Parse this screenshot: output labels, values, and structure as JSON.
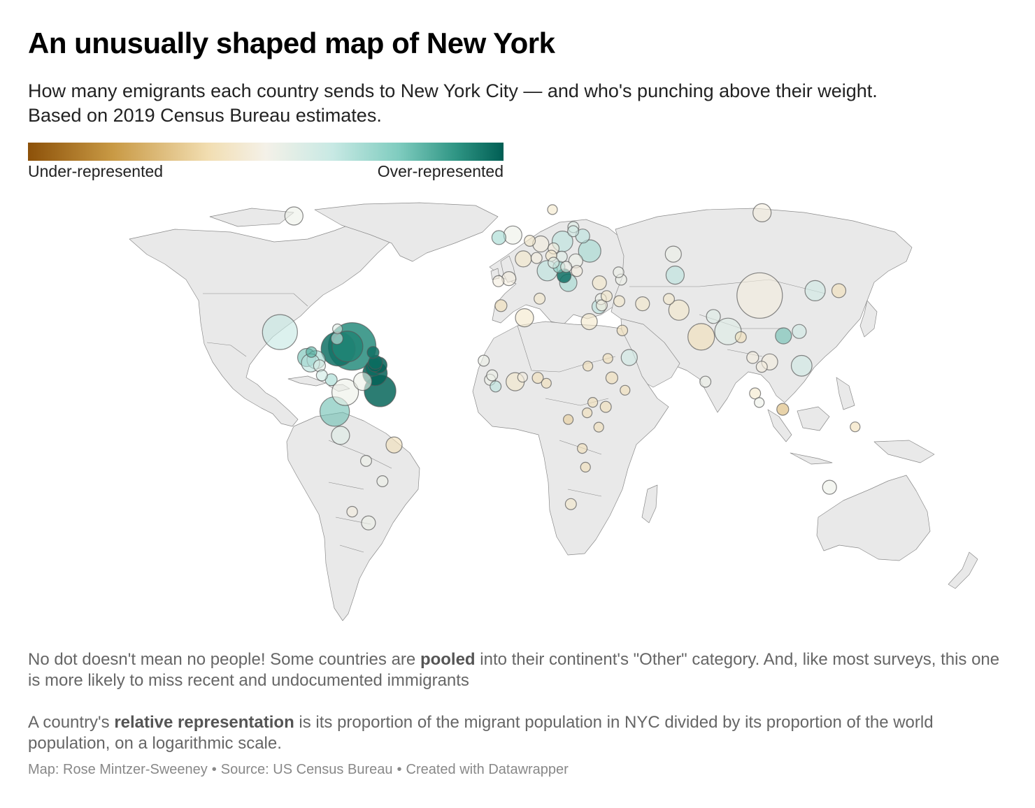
{
  "title": "An unusually shaped map of New York",
  "subtitle": {
    "line1": "How many emigrants each country sends to New York City — and who's punching above their weight.",
    "line2": "Based on 2019 Census Bureau estimates."
  },
  "legend": {
    "low_label": "Under-represented",
    "high_label": "Over-represented",
    "colors": [
      "#8c5109",
      "#c99a45",
      "#f2deb2",
      "#f4f1e8",
      "#c8e9e4",
      "#7fccbf",
      "#2f9584",
      "#005e54"
    ]
  },
  "notes": {
    "p1_a": "No dot doesn't mean no people! Some countries are ",
    "p1_b": "pooled",
    "p1_c": " into their continent's \"Other\" category. And, like most surveys, this one is more likely to miss recent and undocumented immigrants",
    "p2_a": "A country's ",
    "p2_b": "relative representation",
    "p2_c": " is its proportion of the migrant population in NYC divided by its proportion of the world population, on a logarithmic scale."
  },
  "footer": {
    "map_credit": "Map: Rose Mintzer-Sweeney",
    "source": "Source: US Census Bureau",
    "tool": "Created with Datawrapper",
    "separator": "•"
  },
  "colors": {
    "land": "#e9e9e9",
    "border": "#8a8a8a",
    "dot_stroke": "#555555"
  },
  "chart_data": {
    "type": "bubble-map",
    "size_meaning": "number of emigrants living in New York City",
    "color_meaning": "relative representation (log scale)",
    "points": [
      {
        "lon": -96,
        "lat": 60,
        "size": 0.3,
        "rep": 0.45
      },
      {
        "lon": -102,
        "lat": 23.5,
        "size": 0.7,
        "rep": 0.58
      },
      {
        "lon": -71.0,
        "lat": 19.0,
        "size": 1.0,
        "rep": 0.88
      },
      {
        "lon": -77.0,
        "lat": 18.2,
        "size": 0.68,
        "rep": 0.95
      },
      {
        "lon": -73.0,
        "lat": 19.0,
        "size": 0.6,
        "rep": 0.9
      },
      {
        "lon": -61.2,
        "lat": 10.5,
        "size": 0.45,
        "rep": 0.99
      },
      {
        "lon": -59.0,
        "lat": 5.0,
        "size": 0.62,
        "rep": 0.98
      },
      {
        "lon": -66.5,
        "lat": 8.0,
        "size": 0.3,
        "rep": 0.45
      },
      {
        "lon": -61.8,
        "lat": 12.2,
        "size": 0.25,
        "rep": 0.97
      },
      {
        "lon": -61.3,
        "lat": 13.2,
        "size": 0.2,
        "rep": 0.98
      },
      {
        "lon": -61.0,
        "lat": 14.0,
        "size": 0.2,
        "rep": 0.96
      },
      {
        "lon": -59.5,
        "lat": 13.1,
        "size": 0.25,
        "rep": 0.99
      },
      {
        "lon": -62.0,
        "lat": 17.1,
        "size": 0.15,
        "rep": 0.95
      },
      {
        "lon": -77.5,
        "lat": 21.5,
        "size": 0.15,
        "rep": 0.55
      },
      {
        "lon": -77.3,
        "lat": 24.5,
        "size": 0.1,
        "rep": 0.5
      },
      {
        "lon": -74.0,
        "lat": 4.6,
        "size": 0.5,
        "rep": 0.45
      },
      {
        "lon": -78.5,
        "lat": -1.5,
        "size": 0.57,
        "rep": 0.75
      },
      {
        "lon": -76.0,
        "lat": -9.0,
        "size": 0.3,
        "rep": 0.5
      },
      {
        "lon": -53.0,
        "lat": -12.0,
        "size": 0.25,
        "rep": 0.3
      },
      {
        "lon": -65.0,
        "lat": -17.0,
        "size": 0.13,
        "rep": 0.45
      },
      {
        "lon": -58.0,
        "lat": -23.4,
        "size": 0.13,
        "rep": 0.45
      },
      {
        "lon": -71.0,
        "lat": -33.0,
        "size": 0.12,
        "rep": 0.4
      },
      {
        "lon": -64.0,
        "lat": -36.5,
        "size": 0.2,
        "rep": 0.45
      },
      {
        "lon": -90.5,
        "lat": 15.5,
        "size": 0.3,
        "rep": 0.75
      },
      {
        "lon": -86.5,
        "lat": 14.8,
        "size": 0.3,
        "rep": 0.65
      },
      {
        "lon": -88.9,
        "lat": 13.8,
        "size": 0.3,
        "rep": 0.6
      },
      {
        "lon": -85.0,
        "lat": 12.9,
        "size": 0.15,
        "rep": 0.5
      },
      {
        "lon": -84.0,
        "lat": 9.9,
        "size": 0.13,
        "rep": 0.55
      },
      {
        "lon": -80.0,
        "lat": 8.5,
        "size": 0.15,
        "rep": 0.65
      },
      {
        "lon": -88.5,
        "lat": 17.2,
        "size": 0.12,
        "rep": 0.8
      },
      {
        "lon": -2.0,
        "lat": 54.0,
        "size": 0.3,
        "rep": 0.45
      },
      {
        "lon": -8.0,
        "lat": 53.2,
        "size": 0.2,
        "rep": 0.65
      },
      {
        "lon": 2.5,
        "lat": 46.5,
        "size": 0.25,
        "rep": 0.35
      },
      {
        "lon": -3.7,
        "lat": 40.3,
        "size": 0.2,
        "rep": 0.4
      },
      {
        "lon": -8.2,
        "lat": 39.5,
        "size": 0.13,
        "rep": 0.4
      },
      {
        "lon": 10.0,
        "lat": 51.2,
        "size": 0.25,
        "rep": 0.4
      },
      {
        "lon": 12.8,
        "lat": 42.8,
        "size": 0.35,
        "rep": 0.6
      },
      {
        "lon": 19.3,
        "lat": 52.0,
        "size": 0.36,
        "rep": 0.6
      },
      {
        "lon": 31.0,
        "lat": 49.0,
        "size": 0.4,
        "rep": 0.65
      },
      {
        "lon": 21.8,
        "lat": 39.0,
        "size": 0.28,
        "rep": 0.65
      },
      {
        "lon": 20.0,
        "lat": 41.2,
        "size": 0.2,
        "rep": 0.95
      },
      {
        "lon": 25.0,
        "lat": 45.9,
        "size": 0.2,
        "rep": 0.45
      },
      {
        "lon": 25.5,
        "lat": 42.7,
        "size": 0.13,
        "rep": 0.4
      },
      {
        "lon": 20.9,
        "lat": 44.0,
        "size": 0.13,
        "rep": 0.45
      },
      {
        "lon": 28.0,
        "lat": 53.7,
        "size": 0.2,
        "rep": 0.6
      },
      {
        "lon": 19.0,
        "lat": 47.2,
        "size": 0.13,
        "rep": 0.5
      },
      {
        "lon": 15.5,
        "lat": 49.8,
        "size": 0.13,
        "rep": 0.4
      },
      {
        "lon": 14.5,
        "lat": 47.5,
        "size": 0.13,
        "rep": 0.35
      },
      {
        "lon": 8.2,
        "lat": 46.8,
        "size": 0.13,
        "rep": 0.4
      },
      {
        "lon": 5.3,
        "lat": 52.2,
        "size": 0.13,
        "rep": 0.35
      },
      {
        "lon": 24.0,
        "lat": 56.5,
        "size": 0.13,
        "rep": 0.5
      },
      {
        "lon": 15.0,
        "lat": 62.0,
        "size": 0.1,
        "rep": 0.35
      },
      {
        "lon": 23.9,
        "lat": 55.2,
        "size": 0.13,
        "rep": 0.55
      },
      {
        "lon": 17.8,
        "lat": 44.0,
        "size": 0.15,
        "rep": 0.7
      },
      {
        "lon": 15.5,
        "lat": 45.3,
        "size": 0.13,
        "rep": 0.5
      },
      {
        "lon": 105.0,
        "lat": 61.0,
        "size": 0.3,
        "rep": 0.4
      },
      {
        "lon": 104.0,
        "lat": 35.0,
        "size": 0.95,
        "rep": 0.4
      },
      {
        "lon": 127.8,
        "lat": 36.5,
        "size": 0.35,
        "rep": 0.55
      },
      {
        "lon": 138.0,
        "lat": 36.5,
        "size": 0.2,
        "rep": 0.3
      },
      {
        "lon": 121.0,
        "lat": 23.7,
        "size": 0.2,
        "rep": 0.55
      },
      {
        "lon": 122.0,
        "lat": 12.9,
        "size": 0.36,
        "rep": 0.55
      },
      {
        "lon": 108.3,
        "lat": 14.1,
        "size": 0.25,
        "rep": 0.4
      },
      {
        "lon": 114.2,
        "lat": 22.3,
        "size": 0.25,
        "rep": 0.75
      },
      {
        "lon": 101.0,
        "lat": 15.5,
        "size": 0.15,
        "rep": 0.4
      },
      {
        "lon": 104.9,
        "lat": 12.6,
        "size": 0.13,
        "rep": 0.4
      },
      {
        "lon": 95.9,
        "lat": 21.9,
        "size": 0.13,
        "rep": 0.3
      },
      {
        "lon": 102.0,
        "lat": 4.2,
        "size": 0.13,
        "rep": 0.35
      },
      {
        "lon": 103.8,
        "lat": 1.35,
        "size": 0.1,
        "rep": 0.45
      },
      {
        "lon": 113.9,
        "lat": -0.8,
        "size": 0.15,
        "rep": 0.2
      },
      {
        "lon": 145.0,
        "lat": -6.3,
        "size": 0.1,
        "rep": 0.3
      },
      {
        "lon": 134.0,
        "lat": -25.3,
        "size": 0.2,
        "rep": 0.45
      },
      {
        "lon": 78.9,
        "lat": 22.0,
        "size": 0.5,
        "rep": 0.3
      },
      {
        "lon": 90.4,
        "lat": 23.7,
        "size": 0.5,
        "rep": 0.5
      },
      {
        "lon": 69.3,
        "lat": 30.4,
        "size": 0.35,
        "rep": 0.35
      },
      {
        "lon": 84.1,
        "lat": 28.4,
        "size": 0.2,
        "rep": 0.5
      },
      {
        "lon": 80.7,
        "lat": 7.9,
        "size": 0.13,
        "rep": 0.45
      },
      {
        "lon": 67.7,
        "lat": 41.4,
        "size": 0.3,
        "rep": 0.6
      },
      {
        "lon": 66.9,
        "lat": 48.0,
        "size": 0.25,
        "rep": 0.45
      },
      {
        "lon": 53.7,
        "lat": 32.4,
        "size": 0.2,
        "rep": 0.35
      },
      {
        "lon": 65.0,
        "lat": 33.9,
        "size": 0.13,
        "rep": 0.35
      },
      {
        "lon": 44.5,
        "lat": 40.0,
        "size": 0.13,
        "rep": 0.45
      },
      {
        "lon": 43.4,
        "lat": 42.3,
        "size": 0.12,
        "rep": 0.45
      },
      {
        "lon": 35.2,
        "lat": 39.0,
        "size": 0.2,
        "rep": 0.35
      },
      {
        "lon": 35.0,
        "lat": 31.5,
        "size": 0.2,
        "rep": 0.6
      },
      {
        "lon": 35.8,
        "lat": 33.9,
        "size": 0.13,
        "rep": 0.45
      },
      {
        "lon": 36.2,
        "lat": 31.9,
        "size": 0.13,
        "rep": 0.4
      },
      {
        "lon": 38.3,
        "lat": 34.8,
        "size": 0.13,
        "rep": 0.35
      },
      {
        "lon": 43.7,
        "lat": 33.2,
        "size": 0.13,
        "rep": 0.35
      },
      {
        "lon": 45.0,
        "lat": 24.0,
        "size": 0.12,
        "rep": 0.3
      },
      {
        "lon": 48.0,
        "lat": 15.5,
        "size": 0.25,
        "rep": 0.55
      },
      {
        "lon": 30.8,
        "lat": 26.8,
        "size": 0.25,
        "rep": 0.35
      },
      {
        "lon": 3.0,
        "lat": 28.0,
        "size": 0.3,
        "rep": 0.35
      },
      {
        "lon": -7.1,
        "lat": 31.8,
        "size": 0.15,
        "rep": 0.3
      },
      {
        "lon": 9.5,
        "lat": 34.0,
        "size": 0.13,
        "rep": 0.35
      },
      {
        "lon": 30.2,
        "lat": 12.8,
        "size": 0.1,
        "rep": 0.3
      },
      {
        "lon": 40.5,
        "lat": 9.1,
        "size": 0.15,
        "rep": 0.3
      },
      {
        "lon": 38.8,
        "lat": 15.2,
        "size": 0.1,
        "rep": 0.3
      },
      {
        "lon": 46.2,
        "lat": 5.2,
        "size": 0.1,
        "rep": 0.3
      },
      {
        "lon": 37.9,
        "lat": -0.02,
        "size": 0.13,
        "rep": 0.3
      },
      {
        "lon": -1.0,
        "lat": 7.9,
        "size": 0.3,
        "rep": 0.35
      },
      {
        "lon": 8.7,
        "lat": 9.1,
        "size": 0.13,
        "rep": 0.3
      },
      {
        "lon": -11.8,
        "lat": 8.5,
        "size": 0.13,
        "rep": 0.45
      },
      {
        "lon": -14.5,
        "lat": 14.5,
        "size": 0.13,
        "rep": 0.45
      },
      {
        "lon": -9.4,
        "lat": 6.4,
        "size": 0.13,
        "rep": 0.6
      },
      {
        "lon": -10.9,
        "lat": 9.9,
        "size": 0.13,
        "rep": 0.45
      },
      {
        "lon": 2.2,
        "lat": 9.3,
        "size": 0.1,
        "rep": 0.4
      },
      {
        "lon": 12.4,
        "lat": 7.4,
        "size": 0.1,
        "rep": 0.3
      },
      {
        "lon": 21.8,
        "lat": -4.0,
        "size": 0.1,
        "rep": 0.25
      },
      {
        "lon": 34.9,
        "lat": -6.4,
        "size": 0.1,
        "rep": 0.3
      },
      {
        "lon": 32.3,
        "lat": 1.4,
        "size": 0.1,
        "rep": 0.3
      },
      {
        "lon": 29.9,
        "lat": -1.9,
        "size": 0.1,
        "rep": 0.3
      },
      {
        "lon": 27.8,
        "lat": -13.1,
        "size": 0.1,
        "rep": 0.3
      },
      {
        "lon": 29.2,
        "lat": -19.0,
        "size": 0.1,
        "rep": 0.3
      },
      {
        "lon": 22.9,
        "lat": -30.6,
        "size": 0.13,
        "rep": 0.35
      }
    ]
  }
}
